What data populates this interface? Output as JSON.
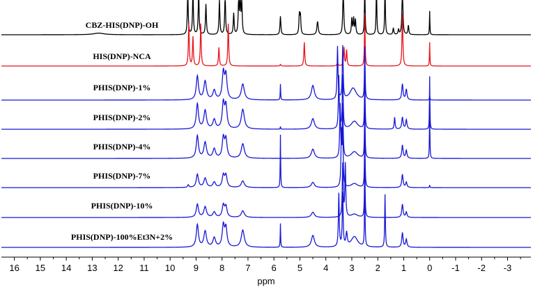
{
  "chart_data": {
    "type": "line",
    "title": "",
    "xlabel": "ppm",
    "ylabel": "",
    "x_reversed": true,
    "xlim": [
      16.5,
      -3.9
    ],
    "x_ticks": [
      16,
      15,
      14,
      13,
      12,
      11,
      10,
      9,
      8,
      7,
      6,
      5,
      4,
      3,
      2,
      1,
      0,
      -1,
      -2,
      -3
    ],
    "grid": false,
    "legend": "none",
    "colors": {
      "reference": "#000000",
      "monomer": "#e8141b",
      "polymer": "#1717d6"
    },
    "series": [
      {
        "name": "CBZ-HIS(DNP)-OH",
        "color": "#000000",
        "peaks": [
          {
            "ppm": 12.75,
            "h": 0.06,
            "w": 0.25
          },
          {
            "ppm": 9.32,
            "h": 1.6,
            "w": 0.02
          },
          {
            "ppm": 9.12,
            "h": 1.6,
            "w": 0.02
          },
          {
            "ppm": 8.9,
            "h": 1.6,
            "w": 0.02
          },
          {
            "ppm": 8.62,
            "h": 1.15,
            "w": 0.02
          },
          {
            "ppm": 8.1,
            "h": 1.3,
            "w": 0.02
          },
          {
            "ppm": 7.88,
            "h": 1.5,
            "w": 0.02
          },
          {
            "ppm": 7.55,
            "h": 0.8,
            "w": 0.02
          },
          {
            "ppm": 7.36,
            "h": 1.3,
            "w": 0.02
          },
          {
            "ppm": 7.3,
            "h": 1.4,
            "w": 0.02
          },
          {
            "ppm": 7.24,
            "h": 1.2,
            "w": 0.02
          },
          {
            "ppm": 5.75,
            "h": 0.7,
            "w": 0.02
          },
          {
            "ppm": 5.02,
            "h": 0.75,
            "w": 0.02
          },
          {
            "ppm": 4.98,
            "h": 0.7,
            "w": 0.02
          },
          {
            "ppm": 4.32,
            "h": 0.5,
            "w": 0.03
          },
          {
            "ppm": 3.33,
            "h": 2.0,
            "w": 0.02
          },
          {
            "ppm": 3.0,
            "h": 0.6,
            "w": 0.02
          },
          {
            "ppm": 2.93,
            "h": 0.6,
            "w": 0.02
          },
          {
            "ppm": 2.86,
            "h": 0.55,
            "w": 0.02
          },
          {
            "ppm": 2.5,
            "h": 2.0,
            "w": 0.015
          },
          {
            "ppm": 2.05,
            "h": 2.0,
            "w": 0.015
          },
          {
            "ppm": 1.72,
            "h": 2.0,
            "w": 0.015
          },
          {
            "ppm": 1.4,
            "h": 0.25,
            "w": 0.02
          },
          {
            "ppm": 1.2,
            "h": 0.2,
            "w": 0.02
          },
          {
            "ppm": 1.05,
            "h": 2.0,
            "w": 0.02
          },
          {
            "ppm": 0.82,
            "h": 0.35,
            "w": 0.02
          },
          {
            "ppm": 0.0,
            "h": 0.9,
            "w": 0.01
          }
        ]
      },
      {
        "name": "HIS(DNP)-NCA",
        "color": "#e8141b",
        "peaks": [
          {
            "ppm": 9.28,
            "h": 1.6,
            "w": 0.02
          },
          {
            "ppm": 9.12,
            "h": 1.1,
            "w": 0.02
          },
          {
            "ppm": 8.82,
            "h": 1.6,
            "w": 0.02
          },
          {
            "ppm": 8.12,
            "h": 0.7,
            "w": 0.02
          },
          {
            "ppm": 7.76,
            "h": 1.6,
            "w": 0.02
          },
          {
            "ppm": 5.75,
            "h": 0.06,
            "w": 0.02
          },
          {
            "ppm": 4.83,
            "h": 0.9,
            "w": 0.02
          },
          {
            "ppm": 3.55,
            "h": 0.1,
            "w": 0.03
          },
          {
            "ppm": 3.3,
            "h": 0.7,
            "w": 0.02
          },
          {
            "ppm": 3.2,
            "h": 0.6,
            "w": 0.02
          },
          {
            "ppm": 2.5,
            "h": 2.0,
            "w": 0.015
          },
          {
            "ppm": 1.05,
            "h": 2.0,
            "w": 0.02
          },
          {
            "ppm": 0.0,
            "h": 0.9,
            "w": 0.01
          }
        ]
      },
      {
        "name": "PHIS(DNP)-1%",
        "color": "#1717d6",
        "peaks": [
          {
            "ppm": 8.95,
            "h": 0.9,
            "w": 0.05
          },
          {
            "ppm": 8.65,
            "h": 0.7,
            "w": 0.06
          },
          {
            "ppm": 8.3,
            "h": 0.35,
            "w": 0.06
          },
          {
            "ppm": 7.95,
            "h": 1.0,
            "w": 0.05
          },
          {
            "ppm": 7.85,
            "h": 0.9,
            "w": 0.05
          },
          {
            "ppm": 7.2,
            "h": 0.6,
            "w": 0.07
          },
          {
            "ppm": 5.75,
            "h": 0.6,
            "w": 0.01
          },
          {
            "ppm": 4.5,
            "h": 0.55,
            "w": 0.07
          },
          {
            "ppm": 2.95,
            "h": 0.45,
            "w": 0.15
          },
          {
            "ppm": 3.55,
            "h": 2.0,
            "w": 0.02
          },
          {
            "ppm": 3.35,
            "h": 2.0,
            "w": 0.02
          },
          {
            "ppm": 2.5,
            "h": 2.0,
            "w": 0.015
          },
          {
            "ppm": 1.05,
            "h": 0.6,
            "w": 0.03
          },
          {
            "ppm": 0.9,
            "h": 0.4,
            "w": 0.03
          },
          {
            "ppm": 0.0,
            "h": 0.2,
            "w": 0.01
          }
        ]
      },
      {
        "name": "PHIS(DNP)-2%",
        "color": "#1717d6",
        "peaks": [
          {
            "ppm": 8.95,
            "h": 0.95,
            "w": 0.05
          },
          {
            "ppm": 8.65,
            "h": 0.7,
            "w": 0.06
          },
          {
            "ppm": 8.3,
            "h": 0.35,
            "w": 0.06
          },
          {
            "ppm": 7.95,
            "h": 0.95,
            "w": 0.05
          },
          {
            "ppm": 7.85,
            "h": 0.85,
            "w": 0.05
          },
          {
            "ppm": 7.2,
            "h": 0.75,
            "w": 0.07
          },
          {
            "ppm": 5.75,
            "h": 0.1,
            "w": 0.01
          },
          {
            "ppm": 4.5,
            "h": 0.4,
            "w": 0.07
          },
          {
            "ppm": 2.9,
            "h": 0.3,
            "w": 0.15
          },
          {
            "ppm": 3.5,
            "h": 2.0,
            "w": 0.02
          },
          {
            "ppm": 3.35,
            "h": 2.0,
            "w": 0.02
          },
          {
            "ppm": 2.5,
            "h": 2.0,
            "w": 0.015
          },
          {
            "ppm": 1.35,
            "h": 0.45,
            "w": 0.02
          },
          {
            "ppm": 1.05,
            "h": 0.45,
            "w": 0.03
          },
          {
            "ppm": 0.9,
            "h": 0.35,
            "w": 0.03
          },
          {
            "ppm": 0.0,
            "h": 2.0,
            "w": 0.01
          }
        ]
      },
      {
        "name": "PHIS(DNP)-4%",
        "color": "#1717d6",
        "peaks": [
          {
            "ppm": 8.95,
            "h": 0.85,
            "w": 0.05
          },
          {
            "ppm": 8.65,
            "h": 0.6,
            "w": 0.06
          },
          {
            "ppm": 8.3,
            "h": 0.35,
            "w": 0.06
          },
          {
            "ppm": 7.95,
            "h": 0.75,
            "w": 0.05
          },
          {
            "ppm": 7.85,
            "h": 0.7,
            "w": 0.05
          },
          {
            "ppm": 7.2,
            "h": 0.55,
            "w": 0.07
          },
          {
            "ppm": 4.5,
            "h": 0.35,
            "w": 0.07
          },
          {
            "ppm": 2.9,
            "h": 0.25,
            "w": 0.15
          },
          {
            "ppm": 3.45,
            "h": 2.0,
            "w": 0.02
          },
          {
            "ppm": 3.35,
            "h": 2.0,
            "w": 0.02
          },
          {
            "ppm": 2.5,
            "h": 2.0,
            "w": 0.015
          },
          {
            "ppm": 1.05,
            "h": 0.5,
            "w": 0.03
          },
          {
            "ppm": 0.9,
            "h": 0.3,
            "w": 0.03
          },
          {
            "ppm": 0.0,
            "h": 2.0,
            "w": 0.01
          }
        ]
      },
      {
        "name": "PHIS(DNP)-7%",
        "color": "#1717d6",
        "peaks": [
          {
            "ppm": 9.3,
            "h": 0.1,
            "w": 0.03
          },
          {
            "ppm": 8.95,
            "h": 0.5,
            "w": 0.05
          },
          {
            "ppm": 8.65,
            "h": 0.35,
            "w": 0.06
          },
          {
            "ppm": 8.3,
            "h": 0.2,
            "w": 0.06
          },
          {
            "ppm": 7.95,
            "h": 0.45,
            "w": 0.05
          },
          {
            "ppm": 7.85,
            "h": 0.45,
            "w": 0.05
          },
          {
            "ppm": 7.2,
            "h": 0.25,
            "w": 0.07
          },
          {
            "ppm": 5.75,
            "h": 2.0,
            "w": 0.01
          },
          {
            "ppm": 4.5,
            "h": 0.2,
            "w": 0.07
          },
          {
            "ppm": 2.9,
            "h": 0.15,
            "w": 0.15
          },
          {
            "ppm": 3.4,
            "h": 2.0,
            "w": 0.02
          },
          {
            "ppm": 3.35,
            "h": 2.0,
            "w": 0.02
          },
          {
            "ppm": 2.5,
            "h": 2.0,
            "w": 0.015
          },
          {
            "ppm": 1.05,
            "h": 0.5,
            "w": 0.03
          },
          {
            "ppm": 0.9,
            "h": 0.2,
            "w": 0.03
          },
          {
            "ppm": 0.0,
            "h": 0.1,
            "w": 0.01
          }
        ]
      },
      {
        "name": "PHIS(DNP)-10%",
        "color": "#1717d6",
        "peaks": [
          {
            "ppm": 8.95,
            "h": 0.5,
            "w": 0.05
          },
          {
            "ppm": 8.65,
            "h": 0.4,
            "w": 0.06
          },
          {
            "ppm": 8.3,
            "h": 0.2,
            "w": 0.06
          },
          {
            "ppm": 7.95,
            "h": 0.45,
            "w": 0.05
          },
          {
            "ppm": 7.85,
            "h": 0.4,
            "w": 0.05
          },
          {
            "ppm": 7.2,
            "h": 0.25,
            "w": 0.07
          },
          {
            "ppm": 4.5,
            "h": 0.2,
            "w": 0.07
          },
          {
            "ppm": 2.9,
            "h": 0.12,
            "w": 0.15
          },
          {
            "ppm": 3.35,
            "h": 2.0,
            "w": 0.02
          },
          {
            "ppm": 3.25,
            "h": 2.0,
            "w": 0.02
          },
          {
            "ppm": 2.5,
            "h": 2.0,
            "w": 0.015
          },
          {
            "ppm": 1.05,
            "h": 0.5,
            "w": 0.03
          },
          {
            "ppm": 0.9,
            "h": 0.2,
            "w": 0.03
          }
        ]
      },
      {
        "name": "PHIS(DNP)-100%Et3N+2%",
        "color": "#1717d6",
        "peaks": [
          {
            "ppm": 8.95,
            "h": 0.85,
            "w": 0.05
          },
          {
            "ppm": 8.65,
            "h": 0.6,
            "w": 0.06
          },
          {
            "ppm": 8.3,
            "h": 0.35,
            "w": 0.06
          },
          {
            "ppm": 7.95,
            "h": 0.8,
            "w": 0.05
          },
          {
            "ppm": 7.85,
            "h": 0.7,
            "w": 0.05
          },
          {
            "ppm": 7.2,
            "h": 0.65,
            "w": 0.07
          },
          {
            "ppm": 5.75,
            "h": 0.9,
            "w": 0.01
          },
          {
            "ppm": 4.5,
            "h": 0.45,
            "w": 0.07
          },
          {
            "ppm": 3.2,
            "h": 0.5,
            "w": 0.03
          },
          {
            "ppm": 2.9,
            "h": 0.4,
            "w": 0.15
          },
          {
            "ppm": 3.5,
            "h": 2.0,
            "w": 0.02
          },
          {
            "ppm": 3.35,
            "h": 2.0,
            "w": 0.02
          },
          {
            "ppm": 2.5,
            "h": 2.0,
            "w": 0.015
          },
          {
            "ppm": 1.72,
            "h": 2.0,
            "w": 0.015
          },
          {
            "ppm": 1.05,
            "h": 0.55,
            "w": 0.03
          },
          {
            "ppm": 0.9,
            "h": 0.3,
            "w": 0.03
          }
        ]
      }
    ],
    "trace_labels": [
      "CBZ-HIS(DNP)-OH",
      "HIS(DNP)-NCA",
      "PHIS(DNP)-1%",
      "PHIS(DNP)-2%",
      "PHIS(DNP)-4%",
      "PHIS(DNP)-7%",
      "PHIS(DNP)-10%",
      "PHIS(DNP)-100%Et3N+2%"
    ]
  }
}
